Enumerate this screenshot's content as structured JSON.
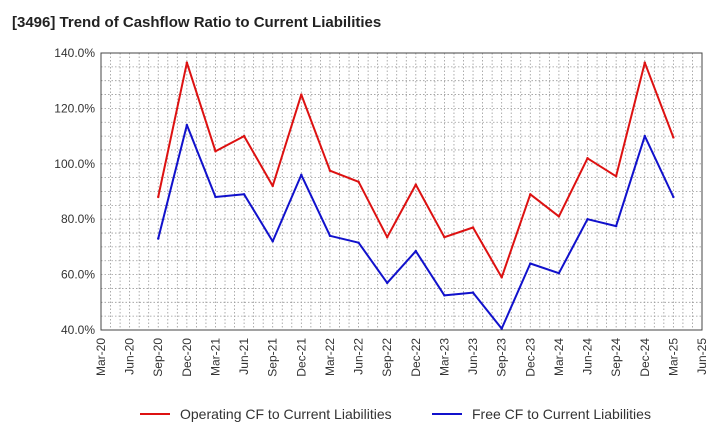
{
  "chart_data": {
    "type": "line",
    "title": "[3496]  Trend of Cashflow Ratio to Current Liabilities",
    "xlabel": "",
    "ylabel": "",
    "ylim": [
      40,
      140
    ],
    "yticks": [
      "40.0%",
      "60.0%",
      "80.0%",
      "100.0%",
      "120.0%",
      "140.0%"
    ],
    "xticks": [
      "Mar-20",
      "Jun-20",
      "Sep-20",
      "Dec-20",
      "Mar-21",
      "Jun-21",
      "Sep-21",
      "Dec-21",
      "Mar-22",
      "Jun-22",
      "Sep-22",
      "Dec-22",
      "Mar-23",
      "Jun-23",
      "Sep-23",
      "Dec-23",
      "Mar-24",
      "Jun-24",
      "Sep-24",
      "Dec-24",
      "Mar-25",
      "Jun-25"
    ],
    "grid": true,
    "legend_position": "bottom",
    "x": [
      "Sep-20",
      "Dec-20",
      "Mar-21",
      "Jun-21",
      "Sep-21",
      "Dec-21",
      "Mar-22",
      "Jun-22",
      "Sep-22",
      "Dec-22",
      "Mar-23",
      "Jun-23",
      "Sep-23",
      "Dec-23",
      "Mar-24",
      "Jun-24",
      "Sep-24",
      "Dec-24",
      "Mar-25"
    ],
    "series": [
      {
        "name": "Operating CF to Current Liabilities",
        "color": "#dd1111",
        "values": [
          88.0,
          136.5,
          104.5,
          110.0,
          92.0,
          125.0,
          97.5,
          93.5,
          73.5,
          92.5,
          73.5,
          77.0,
          59.0,
          89.0,
          81.0,
          102.0,
          95.5,
          136.5,
          109.5
        ]
      },
      {
        "name": "Free CF to Current Liabilities",
        "color": "#1111cc",
        "values": [
          73.0,
          114.0,
          88.0,
          89.0,
          72.0,
          96.0,
          74.0,
          71.5,
          57.0,
          68.5,
          52.5,
          53.5,
          40.5,
          64.0,
          60.5,
          80.0,
          77.5,
          110.0,
          88.0
        ]
      }
    ]
  }
}
